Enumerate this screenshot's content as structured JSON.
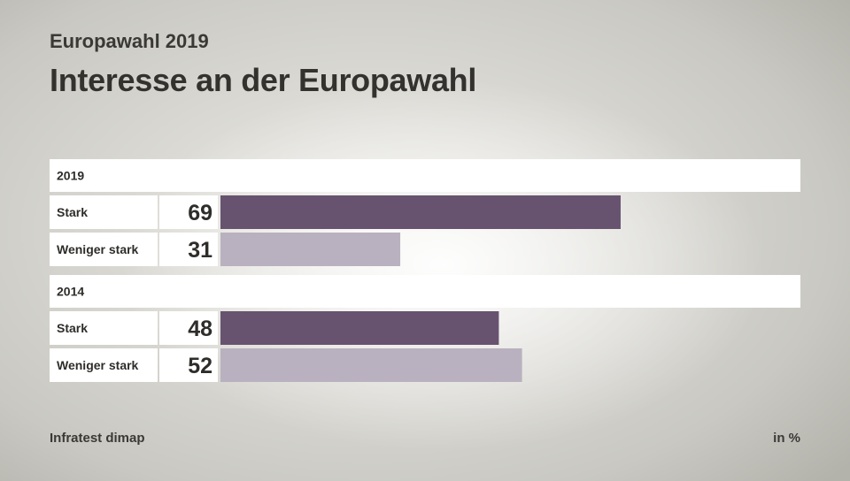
{
  "header": {
    "subtitle": "Europawahl 2019",
    "title": "Interesse an der Europawahl"
  },
  "footer": {
    "source": "Infratest dimap",
    "unit": "in %"
  },
  "colors": {
    "stark": "#67536f",
    "weniger_stark": "#b9b1bf"
  },
  "chart_data": {
    "type": "bar",
    "orientation": "horizontal",
    "title": "Interesse an der Europawahl",
    "unit": "in %",
    "groups": [
      {
        "name": "2019",
        "bars": [
          {
            "label": "Stark",
            "value": 69,
            "color": "#67536f"
          },
          {
            "label": "Weniger stark",
            "value": 31,
            "color": "#b9b1bf"
          }
        ]
      },
      {
        "name": "2014",
        "bars": [
          {
            "label": "Stark",
            "value": 48,
            "color": "#67536f"
          },
          {
            "label": "Weniger stark",
            "value": 52,
            "color": "#b9b1bf"
          }
        ]
      }
    ],
    "xlim": [
      0,
      100
    ]
  }
}
